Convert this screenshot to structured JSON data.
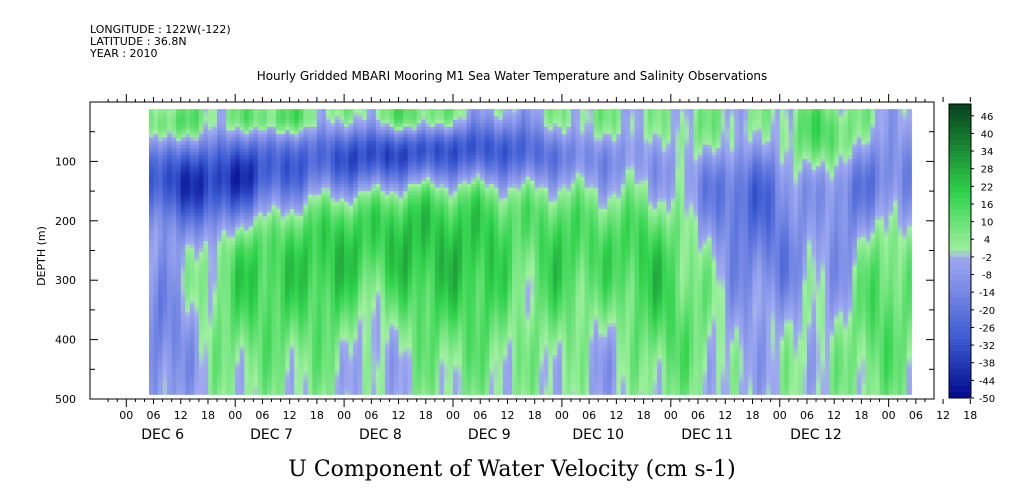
{
  "chart_data": {
    "type": "heatmap",
    "title": "Hourly Gridded MBARI Mooring M1 Sea Water Temperature and Salinity Observations",
    "xlabel": "U Component of Water Velocity (cm s-1)",
    "ylabel": "DEPTH (m)",
    "header": {
      "longitude": "LONGITUDE : 122W(-122)",
      "latitude": "LATITUDE : 36.8N",
      "year": "YEAR : 2010"
    },
    "ylim": [
      500,
      0
    ],
    "y_ticks": [
      100,
      200,
      300,
      400,
      500
    ],
    "x_tick_labels": [
      "00",
      "06",
      "12",
      "18",
      "00",
      "06",
      "12",
      "18",
      "00",
      "06",
      "12",
      "18",
      "00",
      "06",
      "12",
      "18",
      "00",
      "06",
      "12",
      "18",
      "00",
      "06",
      "12",
      "18",
      "00",
      "06",
      "12",
      "18",
      "00",
      "06",
      "12",
      "18"
    ],
    "day_labels": [
      "DEC 6",
      "DEC 7",
      "DEC 8",
      "DEC 9",
      "DEC 10",
      "DEC 11",
      "DEC 12"
    ],
    "colorbar": {
      "min": -50,
      "max": 50,
      "step": 2,
      "labels": [
        "46",
        "40",
        "34",
        "28",
        "22",
        "16",
        "10",
        "4",
        "-2",
        "-8",
        "-14",
        "-20",
        "-26",
        "-32",
        "-38",
        "-44",
        "-50"
      ]
    },
    "colors": {
      "negative_strong": "#000a8c",
      "negative_mid": "#3c5ad2",
      "negative_weak": "#a0aaf0",
      "positive_weak": "#a0f0a0",
      "positive_mid": "#2fd24b",
      "positive_strong": "#06401c"
    },
    "data_extent_hours": [
      5,
      173
    ],
    "depth_extent_m": [
      12,
      488
    ],
    "x_range_hours": [
      -8,
      178
    ],
    "features": [
      {
        "t": 8,
        "z": 125,
        "v": -22,
        "st": 4,
        "sz": 45
      },
      {
        "t": 18,
        "z": 150,
        "v": -28,
        "st": 8,
        "sz": 55
      },
      {
        "t": 27,
        "z": 120,
        "v": -24,
        "st": 8,
        "sz": 50
      },
      {
        "t": 42,
        "z": 110,
        "v": -18,
        "st": 10,
        "sz": 50
      },
      {
        "t": 55,
        "z": 95,
        "v": -26,
        "st": 10,
        "sz": 40
      },
      {
        "t": 72,
        "z": 80,
        "v": -30,
        "st": 12,
        "sz": 40
      },
      {
        "t": 90,
        "z": 80,
        "v": -20,
        "st": 10,
        "sz": 45
      },
      {
        "t": 112,
        "z": 100,
        "v": -16,
        "st": 12,
        "sz": 60
      },
      {
        "t": 140,
        "z": 150,
        "v": -18,
        "st": 10,
        "sz": 60
      },
      {
        "t": 165,
        "z": 130,
        "v": -20,
        "st": 10,
        "sz": 60
      },
      {
        "t": 10,
        "z": 40,
        "v": 16,
        "st": 6,
        "sz": 25
      },
      {
        "t": 33,
        "z": 30,
        "v": 18,
        "st": 8,
        "sz": 22
      },
      {
        "t": 64,
        "z": 30,
        "v": 20,
        "st": 8,
        "sz": 22
      },
      {
        "t": 100,
        "z": 40,
        "v": 14,
        "st": 10,
        "sz": 30
      },
      {
        "t": 128,
        "z": 60,
        "v": 12,
        "st": 8,
        "sz": 40
      },
      {
        "t": 155,
        "z": 60,
        "v": 16,
        "st": 6,
        "sz": 40
      },
      {
        "t": 28,
        "z": 280,
        "v": 18,
        "st": 7,
        "sz": 110
      },
      {
        "t": 45,
        "z": 260,
        "v": 20,
        "st": 7,
        "sz": 110
      },
      {
        "t": 62,
        "z": 240,
        "v": 22,
        "st": 8,
        "sz": 120
      },
      {
        "t": 80,
        "z": 260,
        "v": 20,
        "st": 8,
        "sz": 120
      },
      {
        "t": 96,
        "z": 250,
        "v": 16,
        "st": 7,
        "sz": 110
      },
      {
        "t": 113,
        "z": 250,
        "v": 18,
        "st": 7,
        "sz": 110
      },
      {
        "t": 120,
        "z": 380,
        "v": 10,
        "st": 10,
        "sz": 90
      },
      {
        "t": 152,
        "z": 160,
        "v": 14,
        "st": 6,
        "sz": 90
      },
      {
        "t": 165,
        "z": 330,
        "v": 16,
        "st": 6,
        "sz": 120
      },
      {
        "t": 8,
        "z": 400,
        "v": -16,
        "st": 5,
        "sz": 90
      },
      {
        "t": 55,
        "z": 380,
        "v": -14,
        "st": 5,
        "sz": 80
      },
      {
        "t": 87,
        "z": 300,
        "v": -12,
        "st": 4,
        "sz": 90
      },
      {
        "t": 107,
        "z": 400,
        "v": -12,
        "st": 6,
        "sz": 90
      },
      {
        "t": 135,
        "z": 300,
        "v": -10,
        "st": 5,
        "sz": 150
      },
      {
        "t": 145,
        "z": 260,
        "v": -16,
        "st": 5,
        "sz": 60
      },
      {
        "t": 158,
        "z": 250,
        "v": -18,
        "st": 4,
        "sz": 90
      }
    ]
  }
}
